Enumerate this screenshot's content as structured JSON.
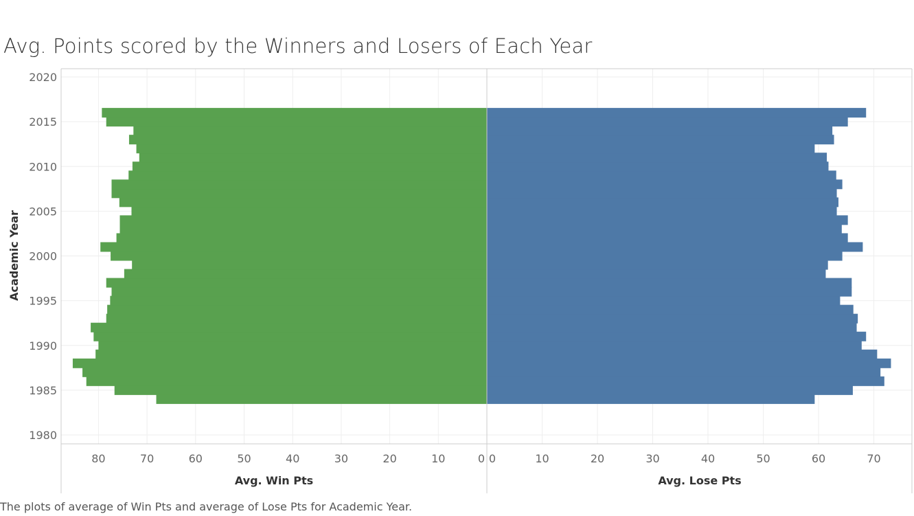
{
  "title": "Avg. Points scored by the Winners and Losers of Each Year",
  "caption": "The plots of average of Win Pts and average of Lose Pts for Academic Year.",
  "colors": {
    "win": "#59a14f",
    "lose": "#4e79a7",
    "grid": "#eeeeee",
    "axis": "#cccccc"
  },
  "chart_data": {
    "type": "bar",
    "orientation": "horizontal",
    "layout": "butterfly",
    "y_label": "Academic Year",
    "y_range": [
      1980,
      2020
    ],
    "y_ticks": [
      1980,
      1985,
      1990,
      1995,
      2000,
      2005,
      2010,
      2015,
      2020
    ],
    "left_panel": {
      "xlabel": "Avg. Win Pts",
      "xlim": [
        0,
        88
      ],
      "ticks": [
        0,
        10,
        20,
        30,
        40,
        50,
        60,
        70,
        80
      ],
      "reversed": true
    },
    "right_panel": {
      "xlabel": "Avg. Lose Pts",
      "xlim": [
        0,
        77
      ],
      "ticks": [
        0,
        10,
        20,
        30,
        40,
        50,
        60,
        70
      ]
    },
    "years": [
      1984,
      1985,
      1986,
      1987,
      1988,
      1989,
      1990,
      1991,
      1992,
      1993,
      1994,
      1995,
      1996,
      1997,
      1998,
      1999,
      2000,
      2001,
      2002,
      2003,
      2004,
      2005,
      2006,
      2007,
      2008,
      2009,
      2010,
      2011,
      2012,
      2013,
      2014,
      2015,
      2016
    ],
    "series": [
      {
        "name": "Avg. Win Pts",
        "values": [
          68.1,
          76.7,
          82.5,
          83.3,
          85.3,
          80.6,
          80.0,
          81.0,
          81.6,
          78.4,
          78.2,
          77.6,
          77.3,
          78.4,
          74.7,
          73.1,
          77.5,
          79.6,
          76.3,
          75.6,
          75.6,
          73.2,
          75.7,
          77.3,
          77.3,
          73.8,
          73.0,
          71.6,
          72.2,
          73.7,
          72.8,
          78.4,
          79.3
        ]
      },
      {
        "name": "Avg. Lose Pts",
        "values": [
          59.3,
          66.2,
          71.9,
          71.2,
          73.1,
          70.6,
          67.8,
          68.6,
          66.9,
          67.1,
          66.3,
          63.9,
          66.0,
          66.0,
          61.3,
          61.7,
          64.3,
          68.0,
          65.3,
          64.2,
          65.3,
          63.3,
          63.6,
          63.3,
          64.3,
          63.2,
          61.8,
          61.5,
          59.3,
          62.8,
          62.5,
          65.3,
          68.6
        ]
      }
    ]
  }
}
